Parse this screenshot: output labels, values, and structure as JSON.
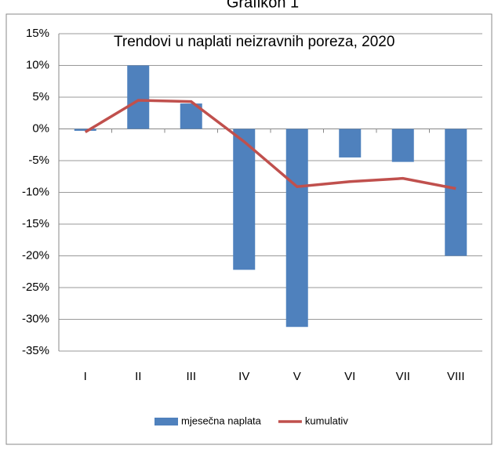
{
  "caption": "Grafikon 1",
  "chart_data": {
    "type": "bar_line",
    "title": "Trendovi u naplati neizravnih poreza, 2020",
    "categories": [
      "I",
      "II",
      "III",
      "IV",
      "V",
      "VI",
      "VII",
      "VIII"
    ],
    "series": [
      {
        "name": "mjesečna naplata",
        "type": "bar",
        "color": "#4f81bd",
        "values": [
          -0.3,
          10,
          4,
          -22.2,
          -31.2,
          -4.5,
          -5.2,
          -20
        ]
      },
      {
        "name": "kumulativ",
        "type": "line",
        "color": "#c0504d",
        "values": [
          -0.5,
          4.5,
          4.3,
          -2,
          -9.1,
          -8.3,
          -7.8,
          -9.4
        ]
      }
    ],
    "ylim": [
      -35,
      15
    ],
    "yticks": [
      {
        "value": -35,
        "label": "-35%"
      },
      {
        "value": -30,
        "label": "-30%"
      },
      {
        "value": -25,
        "label": "-25%"
      },
      {
        "value": -20,
        "label": "-20%"
      },
      {
        "value": -15,
        "label": "-15%"
      },
      {
        "value": -10,
        "label": "-10%"
      },
      {
        "value": -5,
        "label": "-5%"
      },
      {
        "value": 0,
        "label": "0%"
      },
      {
        "value": 5,
        "label": "5%"
      },
      {
        "value": 10,
        "label": "10%"
      },
      {
        "value": 15,
        "label": "15%"
      }
    ],
    "grid": true,
    "legend": "bottom"
  }
}
